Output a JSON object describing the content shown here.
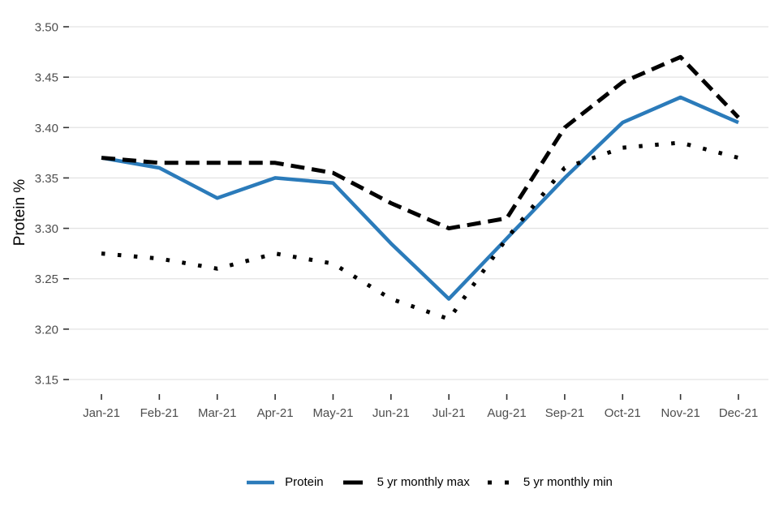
{
  "chart_data": {
    "type": "line",
    "title": "",
    "xlabel": "",
    "ylabel": "Protein %",
    "categories": [
      "Jan-21",
      "Feb-21",
      "Mar-21",
      "Apr-21",
      "May-21",
      "Jun-21",
      "Jul-21",
      "Aug-21",
      "Sep-21",
      "Oct-21",
      "Nov-21",
      "Dec-21"
    ],
    "ylim": [
      3.15,
      3.5
    ],
    "y_ticks": [
      3.5,
      3.45,
      3.4,
      3.35,
      3.3,
      3.25,
      3.2,
      3.15
    ],
    "y_tick_labels": [
      "3.50",
      "3.45",
      "3.40",
      "3.35",
      "3.30",
      "3.25",
      "3.20",
      "3.15"
    ],
    "grid": "horizontal-only",
    "legend_position": "bottom",
    "axis_text_color": "#4d4d4d",
    "grid_color": "#e3e3e3",
    "tick_color": "#333333",
    "series": [
      {
        "name": "Protein",
        "style": "solid",
        "color": "#2b7bba",
        "values": [
          3.37,
          3.36,
          3.33,
          3.35,
          3.345,
          3.285,
          3.23,
          3.29,
          3.35,
          3.405,
          3.43,
          3.405
        ]
      },
      {
        "name": "5 yr monthly max",
        "style": "dashed",
        "color": "#000000",
        "values": [
          3.37,
          3.365,
          3.365,
          3.365,
          3.355,
          3.325,
          3.3,
          3.31,
          3.4,
          3.445,
          3.47,
          3.41
        ]
      },
      {
        "name": "5 yr monthly min",
        "style": "dotted",
        "color": "#000000",
        "values": [
          3.275,
          3.27,
          3.26,
          3.275,
          3.265,
          3.23,
          3.21,
          3.29,
          3.36,
          3.38,
          3.385,
          3.37
        ]
      }
    ]
  }
}
